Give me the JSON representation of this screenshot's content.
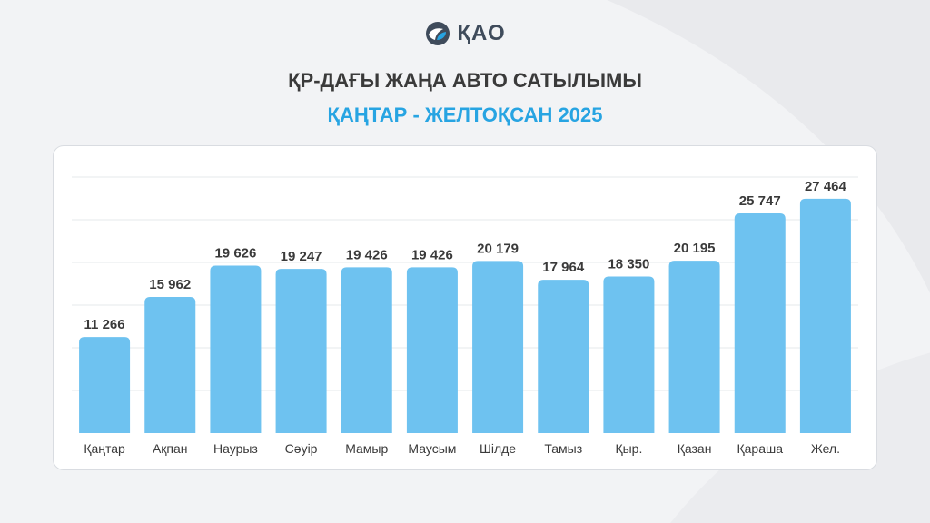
{
  "logo": {
    "text": "ҚАО",
    "icon": "kao-logo-icon"
  },
  "header": {
    "title": "ҚР-ДАҒЫ ЖАҢА АВТО САТЫЛЫМЫ",
    "subtitle": "ҚАҢТАР - ЖЕЛТОҚСАН 2025"
  },
  "colors": {
    "bar": "#6ec2f0",
    "title": "#3a3a3a",
    "subtitle": "#27a4e2",
    "value_label": "#3a3a3a",
    "category_label": "#3a3a3a"
  },
  "chart_data": {
    "type": "bar",
    "title": "ҚР-ДАҒЫ ЖАҢА АВТО САТЫЛЫМЫ",
    "subtitle": "ҚАҢТАР - ЖЕЛТОҚСАН 2025",
    "categories": [
      "Қаңтар",
      "Ақпан",
      "Наурыз",
      "Сәуір",
      "Мамыр",
      "Маусым",
      "Шілде",
      "Тамыз",
      "Қыр.",
      "Қазан",
      "Қараша",
      "Жел."
    ],
    "values": [
      11266,
      15962,
      19626,
      19247,
      19426,
      19426,
      20179,
      17964,
      18350,
      20195,
      25747,
      27464
    ],
    "value_labels": [
      "11 266",
      "15 962",
      "19 626",
      "19 247",
      "19 426",
      "19 426",
      "20 179",
      "17 964",
      "18 350",
      "20 195",
      "25 747",
      "27 464"
    ],
    "xlabel": "",
    "ylabel": "",
    "ylim": [
      0,
      30000
    ],
    "grid": true,
    "legend": "none"
  }
}
